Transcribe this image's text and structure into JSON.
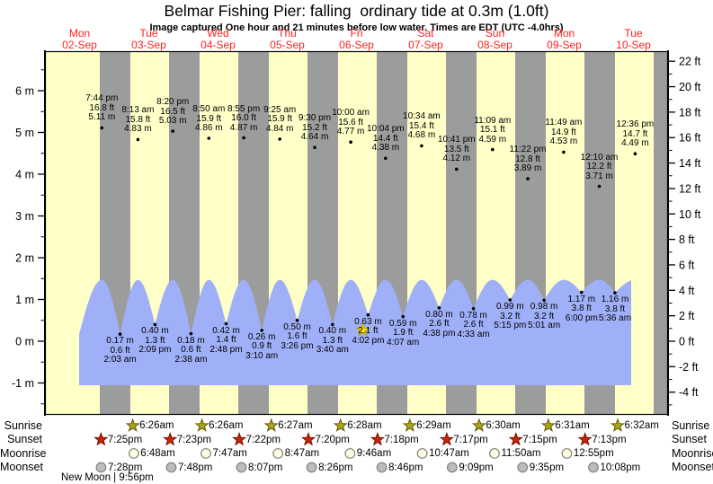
{
  "header": {
    "title": "Belmar Fishing Pier: falling  ordinary tide at 0.3m (1.0ft)",
    "subtitle": "Image captured One hour and 21 minutes before low water. Times are EDT (UTC -4.0hrs)"
  },
  "days": [
    {
      "weekday": "Mon",
      "date": "02-Sep"
    },
    {
      "weekday": "Tue",
      "date": "03-Sep"
    },
    {
      "weekday": "Wed",
      "date": "04-Sep"
    },
    {
      "weekday": "Thu",
      "date": "05-Sep"
    },
    {
      "weekday": "Fri",
      "date": "06-Sep"
    },
    {
      "weekday": "Sat",
      "date": "07-Sep"
    },
    {
      "weekday": "Sun",
      "date": "08-Sep"
    },
    {
      "weekday": "Mon",
      "date": "09-Sep"
    },
    {
      "weekday": "Tue",
      "date": "10-Sep"
    }
  ],
  "axes": {
    "left_unit": "m",
    "right_unit": "ft",
    "left": [
      {
        "v": 6,
        "label": "6 m"
      },
      {
        "v": 5,
        "label": "5 m"
      },
      {
        "v": 4,
        "label": "4 m"
      },
      {
        "v": 3,
        "label": "3 m"
      },
      {
        "v": 2,
        "label": "2 m"
      },
      {
        "v": 1,
        "label": "1 m"
      },
      {
        "v": 0,
        "label": "0 m"
      },
      {
        "v": -1,
        "label": "-1 m"
      }
    ],
    "right": [
      {
        "v": 22,
        "label": "22 ft"
      },
      {
        "v": 20,
        "label": "20 ft"
      },
      {
        "v": 18,
        "label": "18 ft"
      },
      {
        "v": 16,
        "label": "16 ft"
      },
      {
        "v": 14,
        "label": "14 ft"
      },
      {
        "v": 12,
        "label": "12 ft"
      },
      {
        "v": 10,
        "label": "10 ft"
      },
      {
        "v": 8,
        "label": "8 ft"
      },
      {
        "v": 6,
        "label": "6 ft"
      },
      {
        "v": 4,
        "label": "4 ft"
      },
      {
        "v": 2,
        "label": "2 ft"
      },
      {
        "v": 0,
        "label": "0 ft"
      },
      {
        "v": -2,
        "label": "-2 ft"
      },
      {
        "v": -4,
        "label": "-4 ft"
      }
    ]
  },
  "chart_data": {
    "type": "area",
    "description": "Tide height curve over 9 days with high/low tide annotations; wave crests drawn capped near 1.47 m while annotation dots mark true heights",
    "ylim_m": [
      -1.9,
      7.0
    ],
    "tide_events": [
      {
        "type": "high",
        "day": 0,
        "time": "7:44 pm",
        "ft": "16.8",
        "m": "5.11"
      },
      {
        "type": "low",
        "day": 1,
        "time": "2:03 am",
        "ft": "0.6",
        "m": "0.17"
      },
      {
        "type": "high",
        "day": 1,
        "time": "8:13 am",
        "ft": "15.8",
        "m": "4.83"
      },
      {
        "type": "low",
        "day": 1,
        "time": "2:09 pm",
        "ft": "1.3",
        "m": "0.40"
      },
      {
        "type": "high",
        "day": 1,
        "time": "8:20 pm",
        "ft": "16.5",
        "m": "5.03"
      },
      {
        "type": "low",
        "day": 2,
        "time": "2:38 am",
        "ft": "0.6",
        "m": "0.18"
      },
      {
        "type": "high",
        "day": 2,
        "time": "8:50 am",
        "ft": "15.9",
        "m": "4.86"
      },
      {
        "type": "low",
        "day": 2,
        "time": "2:48 pm",
        "ft": "1.4",
        "m": "0.42"
      },
      {
        "type": "high",
        "day": 2,
        "time": "8:55 pm",
        "ft": "16.0",
        "m": "4.87"
      },
      {
        "type": "low",
        "day": 3,
        "time": "3:10 am",
        "ft": "0.9",
        "m": "0.26"
      },
      {
        "type": "high",
        "day": 3,
        "time": "9:25 am",
        "ft": "15.9",
        "m": "4.84"
      },
      {
        "type": "low",
        "day": 3,
        "time": "3:26 pm",
        "ft": "1.6",
        "m": "0.50"
      },
      {
        "type": "high",
        "day": 3,
        "time": "9:30 pm",
        "ft": "15.2",
        "m": "4.64"
      },
      {
        "type": "low",
        "day": 4,
        "time": "3:40 am",
        "ft": "1.3",
        "m": "0.40"
      },
      {
        "type": "high",
        "day": 4,
        "time": "10:00 am",
        "ft": "15.6",
        "m": "4.77"
      },
      {
        "type": "low",
        "day": 4,
        "time": "4:02 pm",
        "ft": "2.1",
        "m": "0.63",
        "highlight": true
      },
      {
        "type": "high",
        "day": 4,
        "time": "10:04 pm",
        "ft": "14.4",
        "m": "4.38"
      },
      {
        "type": "low",
        "day": 5,
        "time": "4:07 am",
        "ft": "1.9",
        "m": "0.59"
      },
      {
        "type": "high",
        "day": 5,
        "time": "10:34 am",
        "ft": "15.4",
        "m": "4.68"
      },
      {
        "type": "low",
        "day": 5,
        "time": "4:38 pm",
        "ft": "2.6",
        "m": "0.80"
      },
      {
        "type": "high",
        "day": 5,
        "time": "10:41 pm",
        "ft": "13.5",
        "m": "4.12"
      },
      {
        "type": "low",
        "day": 6,
        "time": "4:33 am",
        "ft": "2.6",
        "m": "0.78"
      },
      {
        "type": "high",
        "day": 6,
        "time": "11:09 am",
        "ft": "15.1",
        "m": "4.59"
      },
      {
        "type": "low",
        "day": 6,
        "time": "5:15 pm",
        "ft": "3.2",
        "m": "0.99"
      },
      {
        "type": "high",
        "day": 6,
        "time": "11:22 pm",
        "ft": "12.8",
        "m": "3.89"
      },
      {
        "type": "low",
        "day": 7,
        "time": "5:01 am",
        "ft": "3.2",
        "m": "0.98"
      },
      {
        "type": "high",
        "day": 7,
        "time": "11:49 am",
        "ft": "14.9",
        "m": "4.53"
      },
      {
        "type": "low",
        "day": 7,
        "time": "6:00 pm",
        "ft": "3.8",
        "m": "1.17"
      },
      {
        "type": "high",
        "day": 8,
        "time": "12:10 am",
        "ft": "12.2",
        "m": "3.71"
      },
      {
        "type": "low",
        "day": 8,
        "time": "5:36 am",
        "ft": "3.8",
        "m": "1.16"
      },
      {
        "type": "high",
        "day": 8,
        "time": "12:36 pm",
        "ft": "14.7",
        "m": "4.49"
      }
    ]
  },
  "astro": {
    "rows": [
      {
        "label": "Sunrise",
        "icon": "sunrise-star",
        "events": [
          {
            "day": 1,
            "time": "6:26am"
          },
          {
            "day": 2,
            "time": "6:26am"
          },
          {
            "day": 3,
            "time": "6:27am"
          },
          {
            "day": 4,
            "time": "6:28am"
          },
          {
            "day": 5,
            "time": "6:29am"
          },
          {
            "day": 6,
            "time": "6:30am"
          },
          {
            "day": 7,
            "time": "6:31am"
          },
          {
            "day": 8,
            "time": "6:32am"
          }
        ]
      },
      {
        "label": "Sunset",
        "icon": "sunset-star",
        "events": [
          {
            "day": 0,
            "time": "7:25pm"
          },
          {
            "day": 1,
            "time": "7:23pm"
          },
          {
            "day": 2,
            "time": "7:22pm"
          },
          {
            "day": 3,
            "time": "7:20pm"
          },
          {
            "day": 4,
            "time": "7:18pm"
          },
          {
            "day": 5,
            "time": "7:17pm"
          },
          {
            "day": 6,
            "time": "7:15pm"
          },
          {
            "day": 7,
            "time": "7:13pm"
          }
        ]
      },
      {
        "label": "Moonrise",
        "icon": "moonrise-circle",
        "events": [
          {
            "day": 1,
            "time": "6:48am"
          },
          {
            "day": 2,
            "time": "7:47am"
          },
          {
            "day": 3,
            "time": "8:47am"
          },
          {
            "day": 4,
            "time": "9:46am"
          },
          {
            "day": 5,
            "time": "10:47am"
          },
          {
            "day": 6,
            "time": "11:50am"
          },
          {
            "day": 7,
            "time": "12:55pm"
          }
        ]
      },
      {
        "label": "Moonset",
        "icon": "moonset-circle",
        "events": [
          {
            "day": 0,
            "time": "7:28pm"
          },
          {
            "day": 1,
            "time": "7:48pm"
          },
          {
            "day": 2,
            "time": "8:07pm"
          },
          {
            "day": 3,
            "time": "8:26pm"
          },
          {
            "day": 4,
            "time": "8:46pm"
          },
          {
            "day": 5,
            "time": "9:09pm"
          },
          {
            "day": 6,
            "time": "9:35pm"
          },
          {
            "day": 7,
            "time": "10:08pm"
          }
        ]
      }
    ]
  },
  "footnote": "New Moon | 9:56pm",
  "colors": {
    "day_band": "#ffffc8",
    "night_band": "#9c9c9c",
    "tide_fill": "#a0b0f8",
    "date_text": "#ff2020",
    "sunrise_star": "#b0a51e",
    "sunrise_star_edge": "#5f5a00",
    "sunset_star": "#d42105",
    "sunset_star_edge": "#6e1000",
    "moonrise_fill": "#ffffe0",
    "moonset_fill": "#bcbcbc",
    "moon_edge": "#808080",
    "highlight_star": "#ffe400",
    "highlight_star_edge": "#b8a000"
  }
}
